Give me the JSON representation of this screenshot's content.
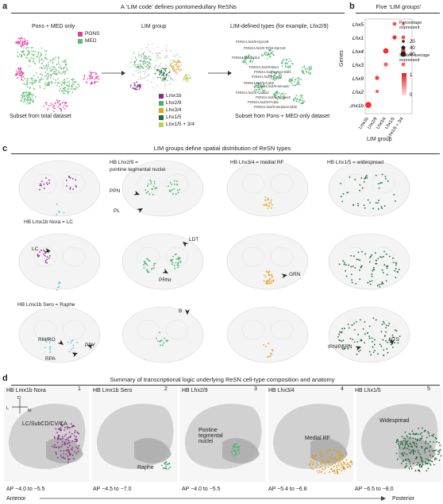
{
  "panel_a": {
    "letter": "a",
    "title": "A ‘LIM code’ defines pontomedullary ReSNs",
    "sub1": "Pons + MED only",
    "sub2": "LIM group",
    "sub3": "LIM-defined types (for example, Lhx2/9)",
    "legend1": [
      {
        "label": "PONS",
        "color": "#e23f9f"
      },
      {
        "label": "MED",
        "color": "#5bbf70"
      }
    ],
    "legend2": [
      {
        "label": "Lmx1b",
        "color": "#8b2a8f"
      },
      {
        "label": "Lhx2/9",
        "color": "#47b36a"
      },
      {
        "label": "Lhx3/4",
        "color": "#e2a21d"
      },
      {
        "label": "Lhx1/5",
        "color": "#1d6a3b"
      },
      {
        "label": "Lhx1/5 + 3/4",
        "color": "#b9d24c"
      }
    ],
    "caption1": "Subset from total dataset",
    "caption3": "Subset from Pons + MED-only dataset",
    "types": [
      "PONS-Lhx2/9-Gpr149",
      "PONS-Lhx2/9-Tcf24-Gpr149",
      "PONS-Lhx2/9-Glut",
      "PONS-Lhx2/9-Ntsr1",
      "PONS-Lhx2/9-Vsx2-Ebf2",
      "PONS-Lhx2/9-Eya1",
      "PONS-Lhx2/9-Calcb",
      "PONS-Lhx2/9-Sema3c",
      "PONS-Lhx2/9-Cadps2",
      "PONS-Lhx2/9-Serpine2",
      "PONS-Lhx2/9-Pcsk5",
      "PONS-Lhx2/9-Serpine2-Ebf2"
    ]
  },
  "panel_b": {
    "letter": "b",
    "title": "Five ‘LIM groups’",
    "ylabel": "Genes",
    "xlabel": "LIM group",
    "pct_title": "Percentage expressed",
    "pct_levels": [
      "20",
      "40",
      "60"
    ],
    "scaled_title": "Scaled average expressed",
    "scale_max": "1",
    "scale_min": "0"
  },
  "chart_data": {
    "type": "dotplot",
    "categories": [
      "Lmx1b",
      "Lhx2/9",
      "Lhx3/4",
      "Lhx1/5",
      "Lhx1/5 + 3/4"
    ],
    "genes": [
      "Lhx5",
      "Lhx1",
      "Lhx4",
      "Lhx3",
      "Lhx9",
      "Lhx2",
      "Lmx1b"
    ],
    "dots": [
      {
        "gene": "Lhx5",
        "group": "Lhx1/5",
        "pct": 35,
        "scaled": 0.8
      },
      {
        "gene": "Lhx5",
        "group": "Lhx1/5 + 3/4",
        "pct": 30,
        "scaled": 0.6
      },
      {
        "gene": "Lhx1",
        "group": "Lhx1/5",
        "pct": 40,
        "scaled": 1.0
      },
      {
        "gene": "Lhx1",
        "group": "Lhx1/5 + 3/4",
        "pct": 35,
        "scaled": 0.8
      },
      {
        "gene": "Lhx4",
        "group": "Lhx3/4",
        "pct": 60,
        "scaled": 1.0
      },
      {
        "gene": "Lhx4",
        "group": "Lhx1/5 + 3/4",
        "pct": 45,
        "scaled": 0.8
      },
      {
        "gene": "Lhx3",
        "group": "Lhx3/4",
        "pct": 40,
        "scaled": 0.7
      },
      {
        "gene": "Lhx3",
        "group": "Lhx1/5 + 3/4",
        "pct": 35,
        "scaled": 0.7
      },
      {
        "gene": "Lhx9",
        "group": "Lhx2/9",
        "pct": 40,
        "scaled": 0.9
      },
      {
        "gene": "Lhx2",
        "group": "Lhx2/9",
        "pct": 25,
        "scaled": 0.8
      },
      {
        "gene": "Lmx1b",
        "group": "Lmx1b",
        "pct": 70,
        "scaled": 1.0
      }
    ]
  },
  "panel_c": {
    "letter": "c",
    "title": "LIM groups define spatial distribution of ReSN types",
    "labels": {
      "lhx29": "HB Lhx2/9 =",
      "lhx29b": "pontine tegmental nuclei",
      "lhx34": "HB Lhx3/4 = medial RF",
      "lhx15": "HB Lhx1/5 = widespread",
      "nora": "HB Lmx1b Nora = LC",
      "sero": "HB Lmx1b Sero = Raphe",
      "ppn": "PPN",
      "pl": "PL",
      "lc": "LC",
      "ldt": "LDT",
      "prnr": "PRNr",
      "grn": "GRN",
      "b": "B",
      "rmro": "RM/RO",
      "ppy": "PPY",
      "rpa": "RPA",
      "nts": "NTS",
      "irn": "IRN/PARN"
    }
  },
  "panel_d": {
    "letter": "d",
    "title": "Summary of transcriptional logic underlying ReSN cell-type composition and anatomy",
    "compass": {
      "d": "D",
      "l": "L",
      "m": "M"
    },
    "cols": [
      {
        "num": "1",
        "name": "HB Lmx1b Nora",
        "note": "LC/SubCD/CV/CA",
        "ap": "AP −4.0 to −5.5",
        "color": "#8b2a8f"
      },
      {
        "num": "2",
        "name": "HB Lmx1b Sero",
        "note": "Raphe",
        "ap": "AP −4.5 to −7.0",
        "color": "#3fa76a"
      },
      {
        "num": "3",
        "name": "HB Lhx2/9",
        "note": "Pontine tegmental nuclei",
        "ap": "AP −4.0 to −5.5",
        "color": "#47b36a"
      },
      {
        "num": "4",
        "name": "HB Lhx3/4",
        "note": "Medial RF",
        "ap": "AP −5.4 to −6.8",
        "color": "#d9a021"
      },
      {
        "num": "5",
        "name": "HB Lhx1/5",
        "note": "Widespread",
        "ap": "AP −6.5 to −8.0",
        "color": "#1d6a3b"
      }
    ],
    "anterior": "Anterior",
    "posterior": "Posterior"
  }
}
